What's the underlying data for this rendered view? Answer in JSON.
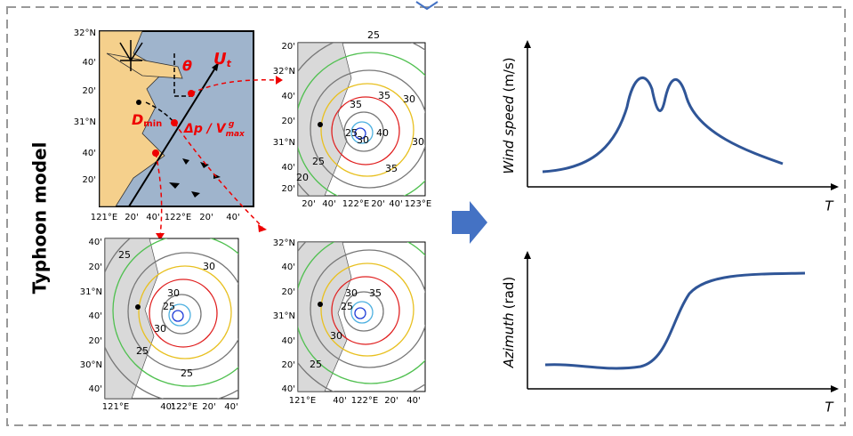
{
  "label": "Typhoon model",
  "main_map": {
    "lat_labels": [
      "32°N",
      "40'",
      "20'",
      "31°N",
      "40'",
      "20'"
    ],
    "lon_labels": [
      "121°E",
      "20'",
      "40'",
      "122°E",
      "20'",
      "40'"
    ],
    "theta": "θ",
    "ut": {
      "main": "U",
      "sub": "t"
    },
    "dmin": {
      "main": "D",
      "sub": "min"
    },
    "dp": {
      "main": "Δp / V",
      "sub": "max",
      "sup": "g"
    }
  },
  "maps": [
    {
      "lat_labels": [
        "20'",
        "32°N",
        "40'",
        "20'",
        "31°N",
        "40'",
        "20'"
      ],
      "lon_labels": [
        "20'",
        "40'",
        "122°E",
        "20'",
        "40'",
        "123°E"
      ],
      "contour_labels": [
        "25",
        "35",
        "35",
        "25",
        "30",
        "40",
        "30",
        "30",
        "35",
        "25",
        "20"
      ]
    },
    {
      "lat_labels": [
        "40'",
        "20'",
        "31°N",
        "40'",
        "20'",
        "30°N",
        "40'"
      ],
      "lon_labels": [
        "121°E",
        "40'",
        "122°E",
        "20'",
        "40'"
      ],
      "contour_labels": [
        "25",
        "30",
        "25",
        "30",
        "30",
        "25",
        "25"
      ]
    },
    {
      "lat_labels": [
        "32°N",
        "40'",
        "20'",
        "31°N",
        "40'",
        "20'",
        "40'"
      ],
      "lon_labels": [
        "121°E",
        "40'",
        "122°E",
        "20'",
        "40'"
      ],
      "contour_labels": [
        "35",
        "30",
        "25",
        "30",
        "25"
      ]
    }
  ],
  "charts": [
    {
      "y_label": "Wind speed",
      "y_unit": "(m/s)",
      "x_label": "T"
    },
    {
      "y_label": "Azimuth",
      "y_unit": "(rad)",
      "x_label": "T"
    }
  ]
}
